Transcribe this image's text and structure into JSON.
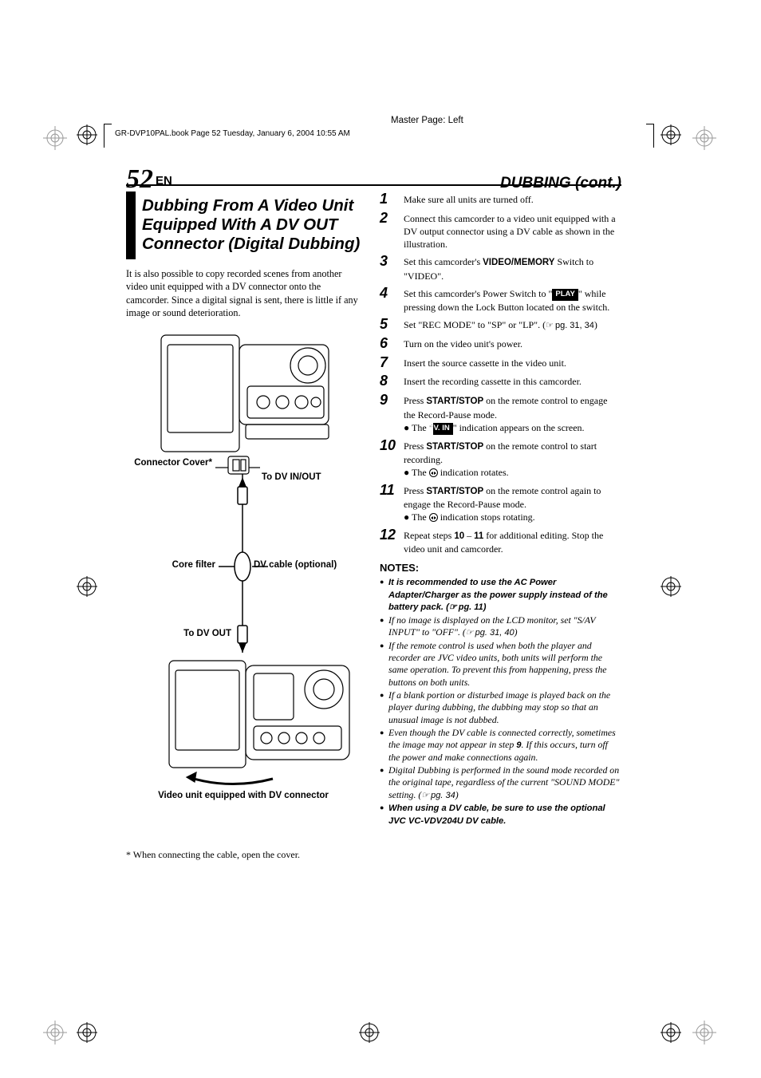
{
  "meta": {
    "master_page": "Master Page: Left",
    "header_line": "GR-DVP10PAL.book  Page 52  Tuesday, January 6, 2004  10:55 AM"
  },
  "header": {
    "page_number": "52",
    "lang": "EN",
    "section": "DUBBING (cont.)"
  },
  "left": {
    "title": "Dubbing From A Video Unit Equipped With A DV OUT Connector (Digital Dubbing)",
    "intro": "It is also possible to copy recorded scenes from another video unit equipped with a DV connector onto the camcorder. Since a digital signal is sent, there is little if any image or sound deterioration.",
    "labels": {
      "connector_cover": "Connector Cover*",
      "to_dv_in_out": "To DV IN/OUT",
      "core_filter": "Core filter",
      "dv_cable": "DV cable (optional)",
      "to_dv_out": "To DV OUT",
      "caption": "Video unit equipped with DV connector"
    },
    "footnote": "* When connecting the cable, open the cover."
  },
  "steps": [
    {
      "n": "1",
      "text": "Make sure all units are turned off."
    },
    {
      "n": "2",
      "text": "Connect this camcorder to a video unit equipped with a DV output connector using a DV cable as shown in the illustration."
    },
    {
      "n": "3",
      "pre": "Set this camcorder's ",
      "bold": "VIDEO/MEMORY",
      "post": " Switch to \"VIDEO\"."
    },
    {
      "n": "4",
      "pre": "Set this camcorder's Power Switch to \"",
      "badge": "PLAY",
      "post": "\" while pressing down the Lock Button located on the switch."
    },
    {
      "n": "5",
      "text": "Set \"REC MODE\" to \"SP\" or \"LP\". (",
      "ref": "pg. 31, 34",
      "post2": ")"
    },
    {
      "n": "6",
      "text": "Turn on the video unit's power."
    },
    {
      "n": "7",
      "text": "Insert the source cassette in the video unit."
    },
    {
      "n": "8",
      "text": "Insert the recording cassette in this camcorder."
    },
    {
      "n": "9",
      "pre": "Press ",
      "bold": "START/STOP",
      "post": " on the remote control to engage the Record-Pause mode.",
      "sub_pre": "The \"",
      "sub_badge": "DV. IN",
      "sub_post": "\" indication appears on the screen."
    },
    {
      "n": "10",
      "pre": "Press ",
      "bold": "START/STOP",
      "post": " on the remote control to start recording.",
      "sub_pre": "The ",
      "sub_icon": true,
      "sub_post": " indication rotates."
    },
    {
      "n": "11",
      "pre": "Press ",
      "bold": "START/STOP",
      "post": " on the remote control again to engage the Record-Pause mode.",
      "sub_pre": "The ",
      "sub_icon": true,
      "sub_post": " indication stops rotating."
    },
    {
      "n": "12",
      "pre": "Repeat steps ",
      "bold": "10",
      "mid": " – ",
      "bold2": "11",
      "post": " for additional editing. Stop the video unit and camcorder."
    }
  ],
  "notes": {
    "header": "NOTES:",
    "items": [
      {
        "bold": true,
        "text": "It is recommended to use the AC Power Adapter/Charger as the power supply instead of the battery pack. (",
        "ref": "pg. 11",
        "post": ")"
      },
      {
        "text": "If no image is displayed on the LCD monitor, set \"S/AV INPUT\" to \"OFF\". (",
        "ref": "pg. 31, 40",
        "post": ")"
      },
      {
        "text": "If the remote control is used when both the player and recorder are JVC video units, both units will perform the same operation. To prevent this from happening, press the buttons on both units."
      },
      {
        "text": "If a blank portion or disturbed image is played back on the player during dubbing, the dubbing may stop so that an unusual image is not dubbed."
      },
      {
        "text": "Even though the DV cable is connected correctly, sometimes the image may not appear in step ",
        "boldmid": "9",
        "post": ". If this occurs, turn off the power and make connections again."
      },
      {
        "text": "Digital Dubbing is performed in the sound mode recorded on the original tape, regardless of the current \"SOUND MODE\" setting. (",
        "ref": "pg. 34",
        "post": ")"
      },
      {
        "bold": true,
        "text": "When using a DV cable, be sure to use the optional JVC VC-VDV204U DV cable."
      }
    ]
  },
  "colors": {
    "fg": "#000000",
    "bg": "#ffffff"
  }
}
